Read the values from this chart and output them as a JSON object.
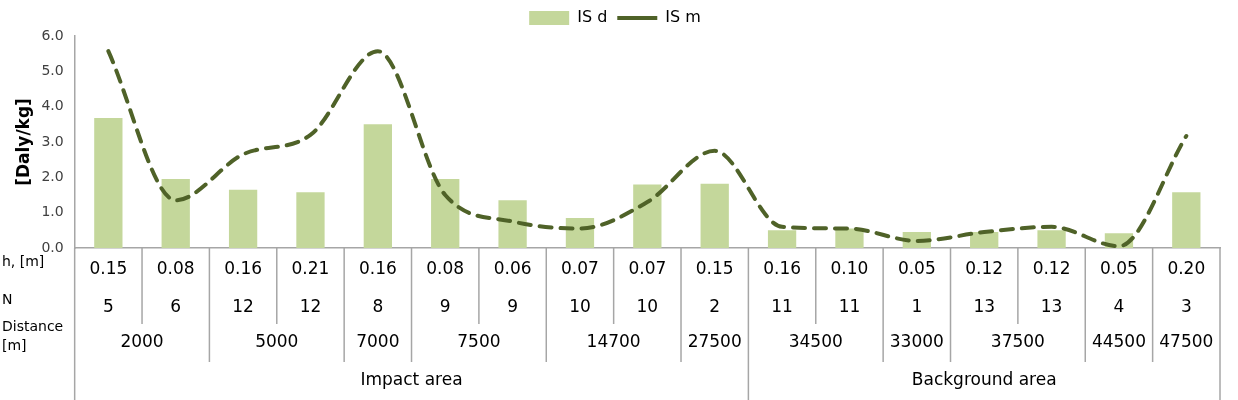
{
  "chart_data": {
    "type": "bar",
    "ylabel": "[Daly/kg]",
    "xlabel": "h, [m]\nN",
    "categories": [
      "0.15\n5",
      "0.08\n6",
      "0.16\n12",
      "0.21\n12",
      "0.16\n8",
      "0.08\n9",
      "0.06\n9",
      "0.07\n10",
      "0.07\n10",
      "0.15\n2",
      "0.16\n11",
      "0.10\n11",
      "0.05\n1",
      "0.12\n13",
      "0.12\n13",
      "0.05\n4",
      "0.20\n3"
    ],
    "annotations": [
      "Distance\n[m]",
      "2000",
      "5000",
      "7000",
      "7500",
      "14700",
      "27500",
      "34500",
      "33000",
      "37500",
      "44500",
      "47500",
      "Impact area",
      "Background area"
    ],
    "series": [
      {
        "name": "IS d",
        "color": "#c4d79b",
        "values": [
          3.68,
          1.95,
          1.65,
          1.58,
          3.5,
          1.95,
          1.35,
          0.85,
          1.8,
          1.82,
          0.5,
          0.55,
          0.45,
          0.45,
          0.5,
          0.42,
          1.58
        ]
      },
      {
        "name": "IS m",
        "type": "line",
        "color": "#4f6228",
        "line_style": "dashed",
        "marker": "none",
        "values": [
          5.57,
          1.35,
          2.65,
          3.2,
          5.57,
          1.5,
          0.75,
          0.55,
          1.3,
          2.75,
          0.6,
          0.55,
          0.2,
          0.45,
          0.6,
          0.05,
          3.17
        ]
      }
    ],
    "ylim": [
      0,
      6
    ],
    "yticks": [
      {
        "value": 0,
        "label": "0.0"
      },
      {
        "value": 1,
        "label": "1.0"
      },
      {
        "value": 2,
        "label": "2.0"
      },
      {
        "value": 3,
        "label": "3.0"
      },
      {
        "value": 4,
        "label": "4.0"
      },
      {
        "value": 5,
        "label": "5.0"
      },
      {
        "value": 6,
        "label": "6.0"
      }
    ],
    "grid": false,
    "legend": "top"
  }
}
